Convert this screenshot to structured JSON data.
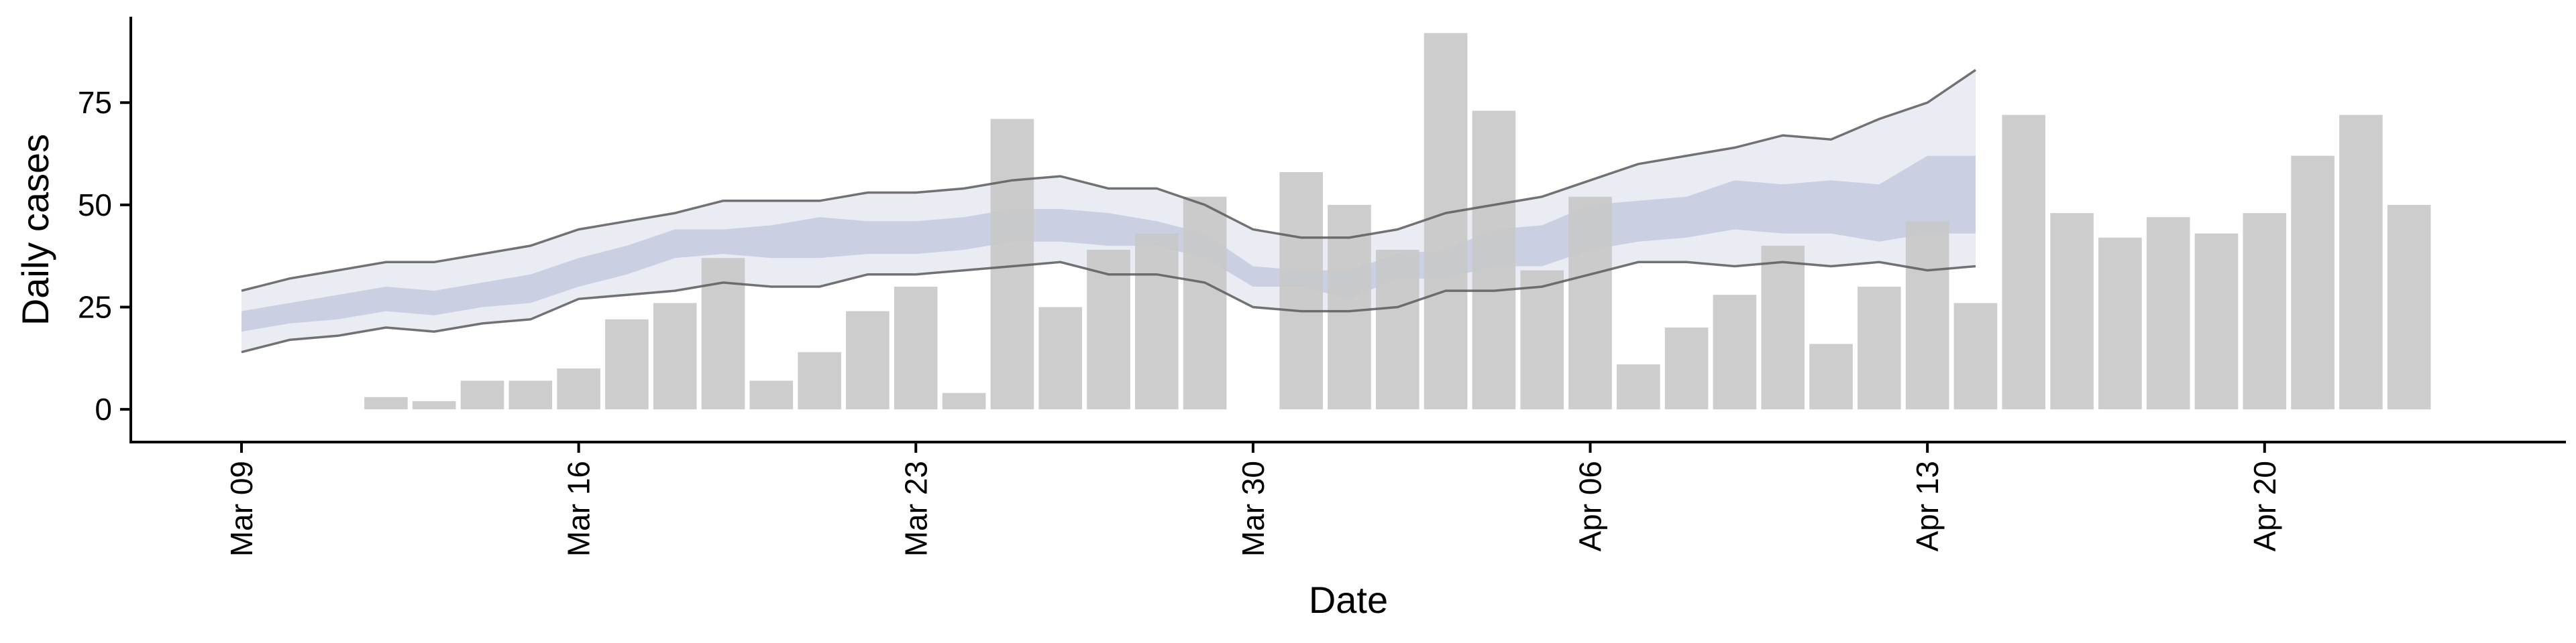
{
  "chart_data": {
    "type": "bar",
    "title": "",
    "xlabel": "Date",
    "ylabel": "Daily cases",
    "ylim": [
      -8,
      96
    ],
    "xlim": [
      "2020-03-09",
      "2020-04-24"
    ],
    "grid": false,
    "legend": "none",
    "x_ticks": [
      {
        "date": "2020-03-09",
        "label": "Mar 09"
      },
      {
        "date": "2020-03-16",
        "label": "Mar 16"
      },
      {
        "date": "2020-03-23",
        "label": "Mar 23"
      },
      {
        "date": "2020-03-30",
        "label": "Mar 30"
      },
      {
        "date": "2020-04-06",
        "label": "Apr 06"
      },
      {
        "date": "2020-04-13",
        "label": "Apr 13"
      },
      {
        "date": "2020-04-20",
        "label": "Apr 20"
      }
    ],
    "y_ticks": [
      0,
      25,
      50,
      75
    ],
    "bars": {
      "x": [
        "2020-03-12",
        "2020-03-13",
        "2020-03-14",
        "2020-03-15",
        "2020-03-16",
        "2020-03-17",
        "2020-03-18",
        "2020-03-19",
        "2020-03-20",
        "2020-03-21",
        "2020-03-22",
        "2020-03-23",
        "2020-03-24",
        "2020-03-25",
        "2020-03-26",
        "2020-03-27",
        "2020-03-28",
        "2020-03-29",
        "2020-03-31",
        "2020-04-01",
        "2020-04-02",
        "2020-04-03",
        "2020-04-04",
        "2020-04-05",
        "2020-04-06",
        "2020-04-07",
        "2020-04-08",
        "2020-04-09",
        "2020-04-10",
        "2020-04-11",
        "2020-04-12",
        "2020-04-13",
        "2020-04-14",
        "2020-04-15",
        "2020-04-16",
        "2020-04-17",
        "2020-04-18",
        "2020-04-19",
        "2020-04-20",
        "2020-04-21",
        "2020-04-22",
        "2020-04-23"
      ],
      "values": [
        3,
        2,
        7,
        7,
        10,
        22,
        26,
        37,
        7,
        14,
        24,
        30,
        4,
        71,
        25,
        39,
        43,
        52,
        58,
        50,
        39,
        92,
        73,
        34,
        52,
        11,
        20,
        28,
        40,
        16,
        30,
        46,
        26,
        72,
        48,
        42,
        47,
        43,
        48,
        62,
        72,
        50
      ],
      "color": "#c8c8c8"
    },
    "estimate": {
      "x": [
        "2020-03-09",
        "2020-03-10",
        "2020-03-11",
        "2020-03-12",
        "2020-03-13",
        "2020-03-14",
        "2020-03-15",
        "2020-03-16",
        "2020-03-17",
        "2020-03-18",
        "2020-03-19",
        "2020-03-20",
        "2020-03-21",
        "2020-03-22",
        "2020-03-23",
        "2020-03-24",
        "2020-03-25",
        "2020-03-26",
        "2020-03-27",
        "2020-03-28",
        "2020-03-29",
        "2020-03-30",
        "2020-03-31",
        "2020-04-01",
        "2020-04-02",
        "2020-04-03",
        "2020-04-04",
        "2020-04-05",
        "2020-04-06",
        "2020-04-07",
        "2020-04-08",
        "2020-04-09",
        "2020-04-10",
        "2020-04-11",
        "2020-04-12",
        "2020-04-13",
        "2020-04-14"
      ],
      "outer_low": [
        14,
        17,
        18,
        20,
        19,
        21,
        22,
        27,
        28,
        29,
        31,
        30,
        30,
        33,
        33,
        34,
        35,
        36,
        33,
        33,
        31,
        25,
        24,
        24,
        25,
        29,
        29,
        30,
        33,
        36,
        36,
        35,
        36,
        35,
        36,
        34,
        35
      ],
      "outer_high": [
        29,
        32,
        34,
        36,
        36,
        38,
        40,
        44,
        46,
        48,
        51,
        51,
        51,
        53,
        53,
        54,
        56,
        57,
        54,
        54,
        50,
        44,
        42,
        42,
        44,
        48,
        50,
        52,
        56,
        60,
        62,
        64,
        67,
        66,
        71,
        75,
        83
      ],
      "inner_low": [
        19,
        21,
        22,
        24,
        23,
        25,
        26,
        30,
        33,
        37,
        38,
        37,
        37,
        38,
        38,
        39,
        41,
        41,
        40,
        40,
        37,
        30,
        30,
        27,
        32,
        32,
        35,
        35,
        39,
        41,
        42,
        44,
        43,
        43,
        41,
        43,
        43
      ],
      "inner_high": [
        24,
        26,
        28,
        30,
        29,
        31,
        33,
        37,
        40,
        44,
        44,
        45,
        47,
        46,
        46,
        47,
        49,
        49,
        48,
        46,
        43,
        35,
        34,
        34,
        38,
        39,
        44,
        45,
        50,
        51,
        52,
        56,
        55,
        56,
        55,
        62,
        62
      ],
      "band_color": "#b8c0d8",
      "line_color": "#5a5a5a"
    }
  }
}
